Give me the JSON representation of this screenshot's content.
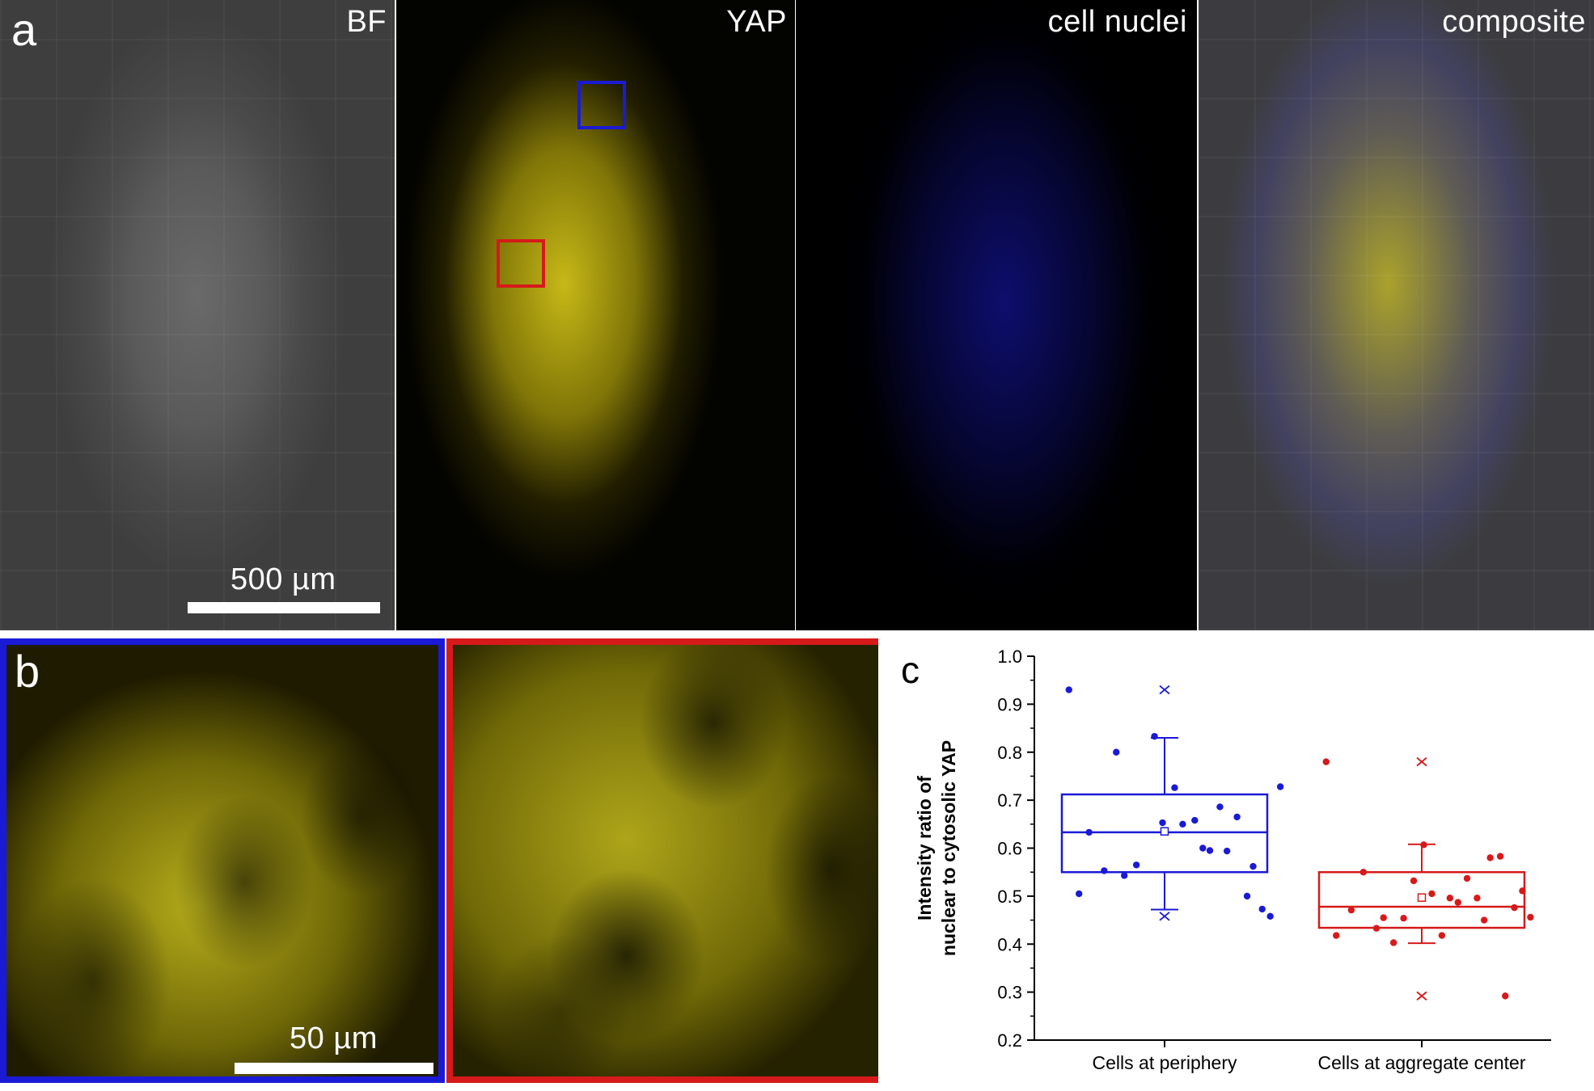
{
  "figure": {
    "panel_letters": {
      "a": "a",
      "b": "b",
      "c": "c"
    },
    "panel_a": {
      "labels": [
        "BF",
        "YAP",
        "cell nuclei",
        "composite"
      ],
      "scale_bar": "500 µm",
      "roi_colors": {
        "blue": "#1a1ad6",
        "red": "#d61a1a"
      }
    },
    "panel_b": {
      "scale_bar": "50 µm",
      "frame_colors": {
        "left": "#1a1ad6",
        "right": "#d61a1a"
      }
    }
  },
  "chart_data": {
    "type": "box",
    "ylabel_lines": [
      "Intensity ratio of",
      "nuclear to cytosolic YAP"
    ],
    "ylim": [
      0.2,
      1.0
    ],
    "yticks": [
      "0.2",
      "0.3",
      "0.4",
      "0.5",
      "0.6",
      "0.7",
      "0.8",
      "0.9",
      "1.0"
    ],
    "categories": [
      "Cells at periphery",
      "Cells at aggregate center"
    ],
    "series": [
      {
        "color": "#1a1ad6",
        "q1": 0.55,
        "median": 0.633,
        "q3": 0.712,
        "whisker_low": 0.472,
        "whisker_high": 0.83,
        "mean": 0.635,
        "min": 0.458,
        "max": 0.93,
        "points": [
          [
            -0.95,
            0.93
          ],
          [
            -0.75,
            0.633
          ],
          [
            -0.6,
            0.553
          ],
          [
            -0.48,
            0.8
          ],
          [
            -0.4,
            0.543
          ],
          [
            -0.28,
            0.565
          ],
          [
            -0.1,
            0.833
          ],
          [
            -0.02,
            0.653
          ],
          [
            0.1,
            0.726
          ],
          [
            0.18,
            0.65
          ],
          [
            0.3,
            0.658
          ],
          [
            0.38,
            0.6
          ],
          [
            0.45,
            0.595
          ],
          [
            0.55,
            0.686
          ],
          [
            0.62,
            0.594
          ],
          [
            0.72,
            0.665
          ],
          [
            0.82,
            0.5
          ],
          [
            0.88,
            0.562
          ],
          [
            -0.85,
            0.505
          ],
          [
            0.97,
            0.473
          ],
          [
            1.05,
            0.458
          ],
          [
            1.15,
            0.728
          ]
        ]
      },
      {
        "color": "#d61a1a",
        "q1": 0.434,
        "median": 0.478,
        "q3": 0.55,
        "whisker_low": 0.402,
        "whisker_high": 0.608,
        "mean": 0.497,
        "min": 0.292,
        "max": 0.78,
        "points": [
          [
            -0.95,
            0.78
          ],
          [
            -0.85,
            0.418
          ],
          [
            -0.7,
            0.471
          ],
          [
            -0.58,
            0.55
          ],
          [
            -0.45,
            0.433
          ],
          [
            -0.38,
            0.455
          ],
          [
            -0.28,
            0.403
          ],
          [
            -0.18,
            0.454
          ],
          [
            -0.08,
            0.532
          ],
          [
            0.02,
            0.607
          ],
          [
            0.1,
            0.505
          ],
          [
            0.2,
            0.418
          ],
          [
            0.28,
            0.496
          ],
          [
            0.36,
            0.487
          ],
          [
            0.45,
            0.537
          ],
          [
            0.55,
            0.496
          ],
          [
            0.62,
            0.45
          ],
          [
            0.68,
            0.58
          ],
          [
            0.78,
            0.583
          ],
          [
            0.83,
            0.292
          ],
          [
            0.92,
            0.476
          ],
          [
            1.0,
            0.511
          ],
          [
            1.08,
            0.456
          ]
        ]
      }
    ]
  }
}
